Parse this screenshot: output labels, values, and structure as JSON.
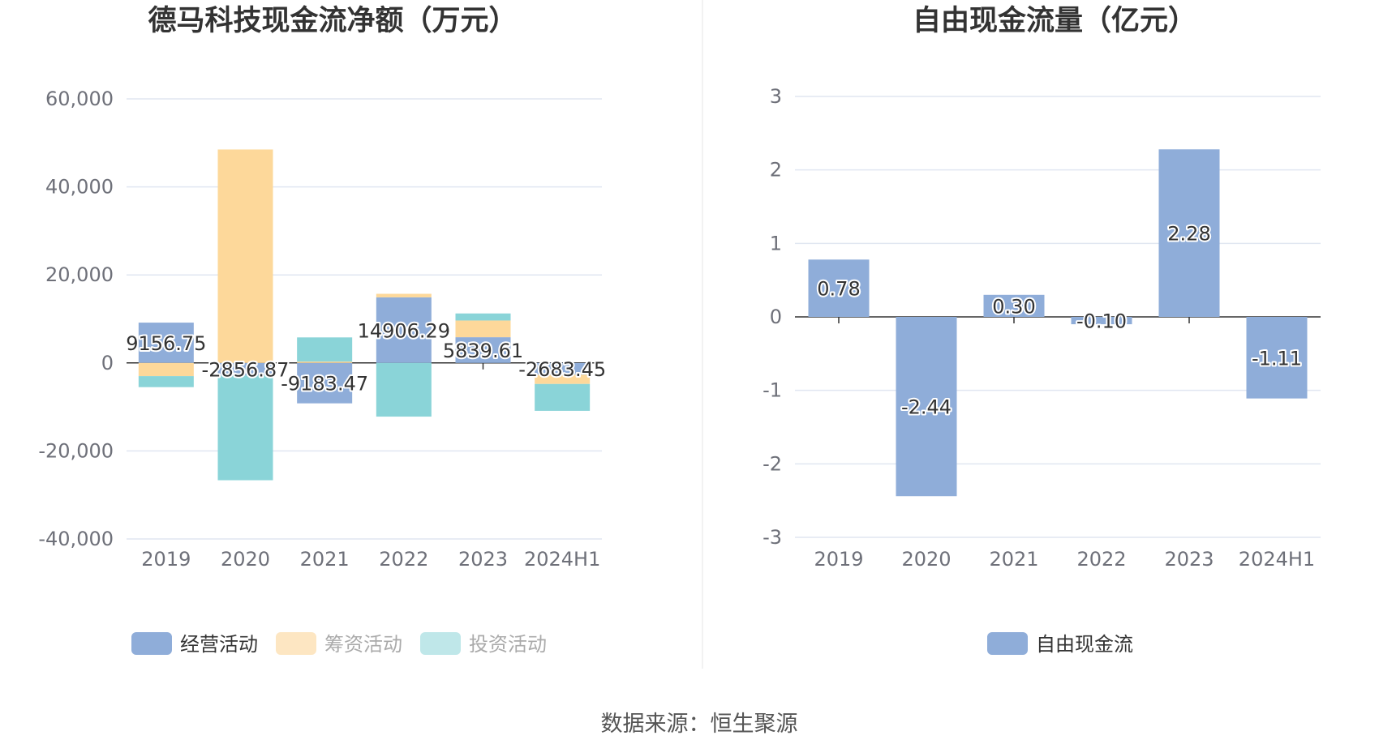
{
  "source": "数据来源：恒生聚源",
  "colors": {
    "operating": "#8fadd9",
    "financing": "#fdd89a",
    "investing": "#8ad4d8",
    "legend_operating": "#8fadd9",
    "legend_financing": "#fde6c2",
    "legend_investing": "#bfe7e9",
    "fcf": "#8fadd9",
    "legend_text_active": "#333333",
    "legend_text_inactive": "#aaaaaa"
  },
  "chart_data": [
    {
      "type": "bar",
      "stacked": true,
      "title": "德马科技现金流净额（万元）",
      "categories": [
        "2019",
        "2020",
        "2021",
        "2022",
        "2023",
        "2024H1"
      ],
      "yticks": [
        "60,000",
        "40,000",
        "20,000",
        "0",
        "-20,000",
        "-40,000"
      ],
      "ylim": [
        -40000,
        60000
      ],
      "grid": true,
      "legend_position": "bottom",
      "series": [
        {
          "name": "经营活动",
          "values": [
            9156.75,
            -2856.87,
            -9183.47,
            14906.29,
            5839.61,
            -2683.45
          ]
        },
        {
          "name": "筹资活动",
          "values": [
            -3000,
            48500,
            300,
            800,
            3800,
            -2100
          ]
        },
        {
          "name": "投资活动",
          "values": [
            -2500,
            -23800,
            5500,
            -12200,
            1600,
            -6100
          ]
        }
      ],
      "data_labels": [
        "9156.75",
        "-2856.87",
        "-9183.47",
        "14906.29",
        "5839.61",
        "-2683.45"
      ]
    },
    {
      "type": "bar",
      "title": "自由现金流量（亿元）",
      "categories": [
        "2019",
        "2020",
        "2021",
        "2022",
        "2023",
        "2024H1"
      ],
      "yticks": [
        "3",
        "2",
        "1",
        "0",
        "-1",
        "-2",
        "-3"
      ],
      "ylim": [
        -3,
        3
      ],
      "grid": true,
      "legend_position": "bottom",
      "series": [
        {
          "name": "自由现金流",
          "values": [
            0.78,
            -2.44,
            0.3,
            -0.1,
            2.28,
            -1.11
          ]
        }
      ],
      "data_labels": [
        "0.78",
        "-2.44",
        "0.30",
        "-0.10",
        "2.28",
        "-1.11"
      ]
    }
  ]
}
